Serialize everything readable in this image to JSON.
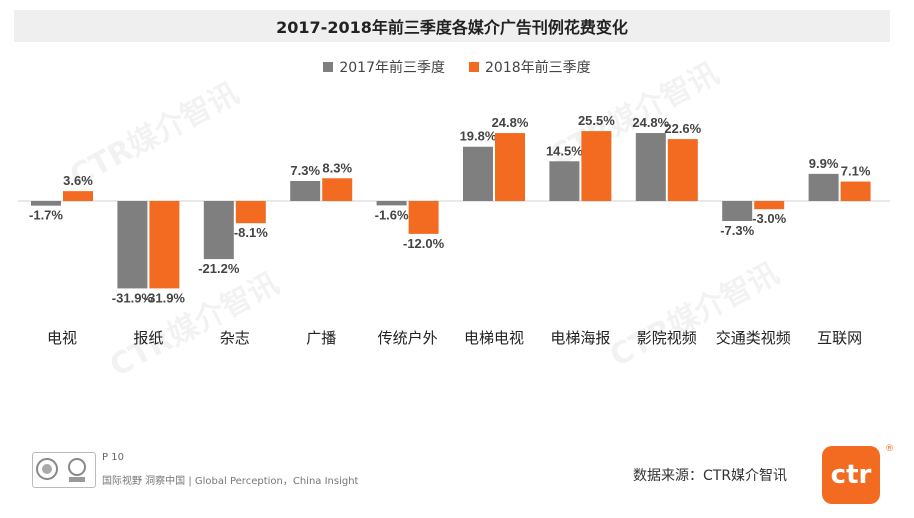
{
  "footer": {
    "page_label": "P 10",
    "slogan": "国际视野  洞察中国 |  Global Perception，China Insight",
    "source": "数据来源：CTR媒介智讯",
    "logo_text": "ctr",
    "logo_reg": "®"
  },
  "watermark_text": "CTR媒介智讯",
  "colors": {
    "series_2017": "#7f7f7f",
    "series_2018": "#f26b21",
    "axis": "#d0d0d0"
  },
  "chart_data": {
    "type": "bar",
    "title": "2017-2018年前三季度各媒介广告刊例花费变化",
    "categories": [
      "电视",
      "报纸",
      "杂志",
      "广播",
      "传统户外",
      "电梯电视",
      "电梯海报",
      "影院视频",
      "交通类视频",
      "互联网"
    ],
    "series": [
      {
        "name": "2017年前三季度",
        "values": [
          -1.7,
          -31.9,
          -21.2,
          7.3,
          -1.6,
          19.8,
          14.5,
          24.8,
          -7.3,
          9.9
        ],
        "labels": [
          "-1.7%",
          "-31.9%",
          "-21.2%",
          "7.3%",
          "-1.6%",
          "19.8%",
          "14.5%",
          "24.8%",
          "-7.3%",
          "9.9%"
        ]
      },
      {
        "name": "2018年前三季度",
        "values": [
          3.6,
          -31.9,
          -8.1,
          8.3,
          -12.0,
          24.8,
          25.5,
          22.6,
          -3.0,
          7.1
        ],
        "labels": [
          "3.6%",
          "-31.9%",
          "-8.1%",
          "8.3%",
          "-12.0%",
          "24.8%",
          "25.5%",
          "22.6%",
          "-3.0%",
          "7.1%"
        ]
      }
    ],
    "value_unit": "%",
    "ylim": [
      -31.9,
      25.5
    ],
    "grid": false,
    "legend": "top-center"
  }
}
